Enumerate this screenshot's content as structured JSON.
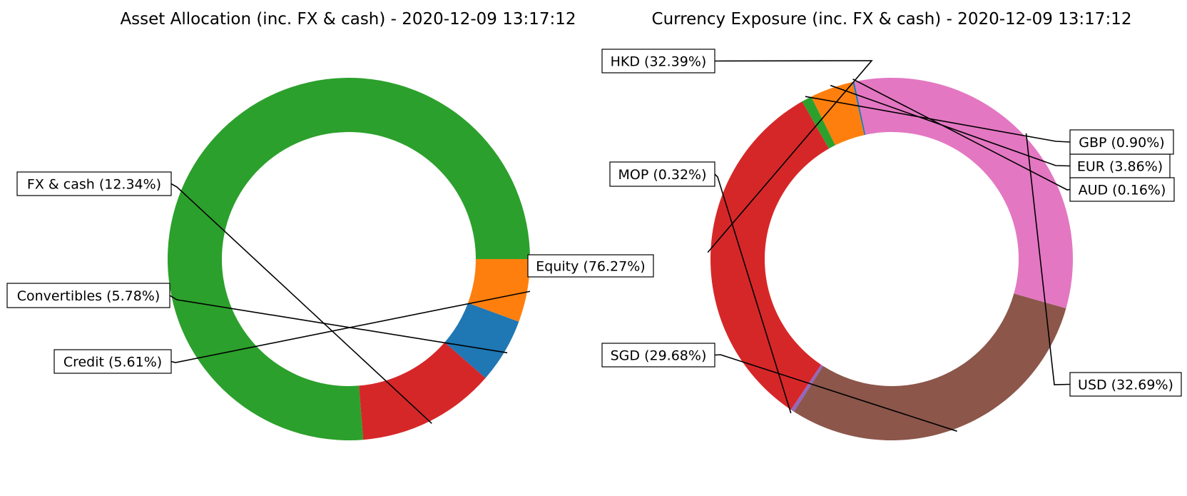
{
  "chart_data": [
    {
      "type": "pie",
      "donut": true,
      "title": "Asset Allocation (inc. FX & cash) - 2020-12-09 13:17:12",
      "legend": "none",
      "slices": [
        {
          "name": "Equity",
          "value": 76.27,
          "label": "Equity (76.27%)",
          "color": "#2ca02c"
        },
        {
          "name": "FX & cash",
          "value": 12.34,
          "label": "FX & cash (12.34%)",
          "color": "#d62728"
        },
        {
          "name": "Convertibles",
          "value": 5.78,
          "label": "Convertibles (5.78%)",
          "color": "#1f77b4"
        },
        {
          "name": "Credit",
          "value": 5.61,
          "label": "Credit (5.61%)",
          "color": "#ff7f0e"
        }
      ]
    },
    {
      "type": "pie",
      "donut": true,
      "title": "Currency Exposure (inc. FX & cash) - 2020-12-09 13:17:12",
      "legend": "none",
      "slices": [
        {
          "name": "USD",
          "value": 32.69,
          "label": "USD (32.69%)",
          "color": "#e377c2"
        },
        {
          "name": "AUD",
          "value": 0.16,
          "label": "AUD (0.16%)",
          "color": "#1f77b4"
        },
        {
          "name": "EUR",
          "value": 3.86,
          "label": "EUR (3.86%)",
          "color": "#ff7f0e"
        },
        {
          "name": "GBP",
          "value": 0.9,
          "label": "GBP (0.90%)",
          "color": "#2ca02c"
        },
        {
          "name": "HKD",
          "value": 32.39,
          "label": "HKD (32.39%)",
          "color": "#d62728"
        },
        {
          "name": "MOP",
          "value": 0.32,
          "label": "MOP (0.32%)",
          "color": "#9467bd"
        },
        {
          "name": "SGD",
          "value": 29.68,
          "label": "SGD (29.68%)",
          "color": "#8c564b"
        }
      ]
    }
  ]
}
